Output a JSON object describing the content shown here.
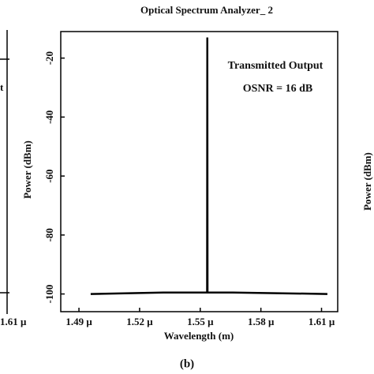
{
  "chart_data": {
    "type": "line",
    "title": "Optical Spectrum Analyzer_ 2",
    "x_label": "Wavelength (m)",
    "y_label": "Power (dBm)",
    "annotations": [
      "Transmitted Output",
      "OSNR = 16 dB"
    ],
    "x": [
      1.4958e-06,
      1.5317e-06,
      1.5534e-06,
      1.5535e-06,
      1.5536e-06,
      1.5661e-06,
      1.6129e-06
    ],
    "values": [
      -100,
      -99.5,
      -99.5,
      -13,
      -99.5,
      -99.5,
      -100
    ],
    "color": "#000000",
    "xlim": [
      1.481e-06,
      1.618e-06
    ],
    "xticks": [
      {
        "value": 1.49e-06,
        "label": "1.49 μ"
      },
      {
        "value": 1.52e-06,
        "label": "1.52 μ"
      },
      {
        "value": 1.55e-06,
        "label": "1.55 μ"
      },
      {
        "value": 1.58e-06,
        "label": "1.58 μ"
      },
      {
        "value": 1.61e-06,
        "label": "1.61 μ"
      }
    ],
    "ylim": [
      -106,
      -11
    ],
    "yticks": [
      -20,
      -40,
      -60,
      -80,
      -100
    ],
    "grid": false
  },
  "figure": {
    "caption": "(b)",
    "left_panel_fragments": [
      "t",
      "1.61 μ"
    ],
    "right_panel_y_label": "Power (dBm)"
  }
}
